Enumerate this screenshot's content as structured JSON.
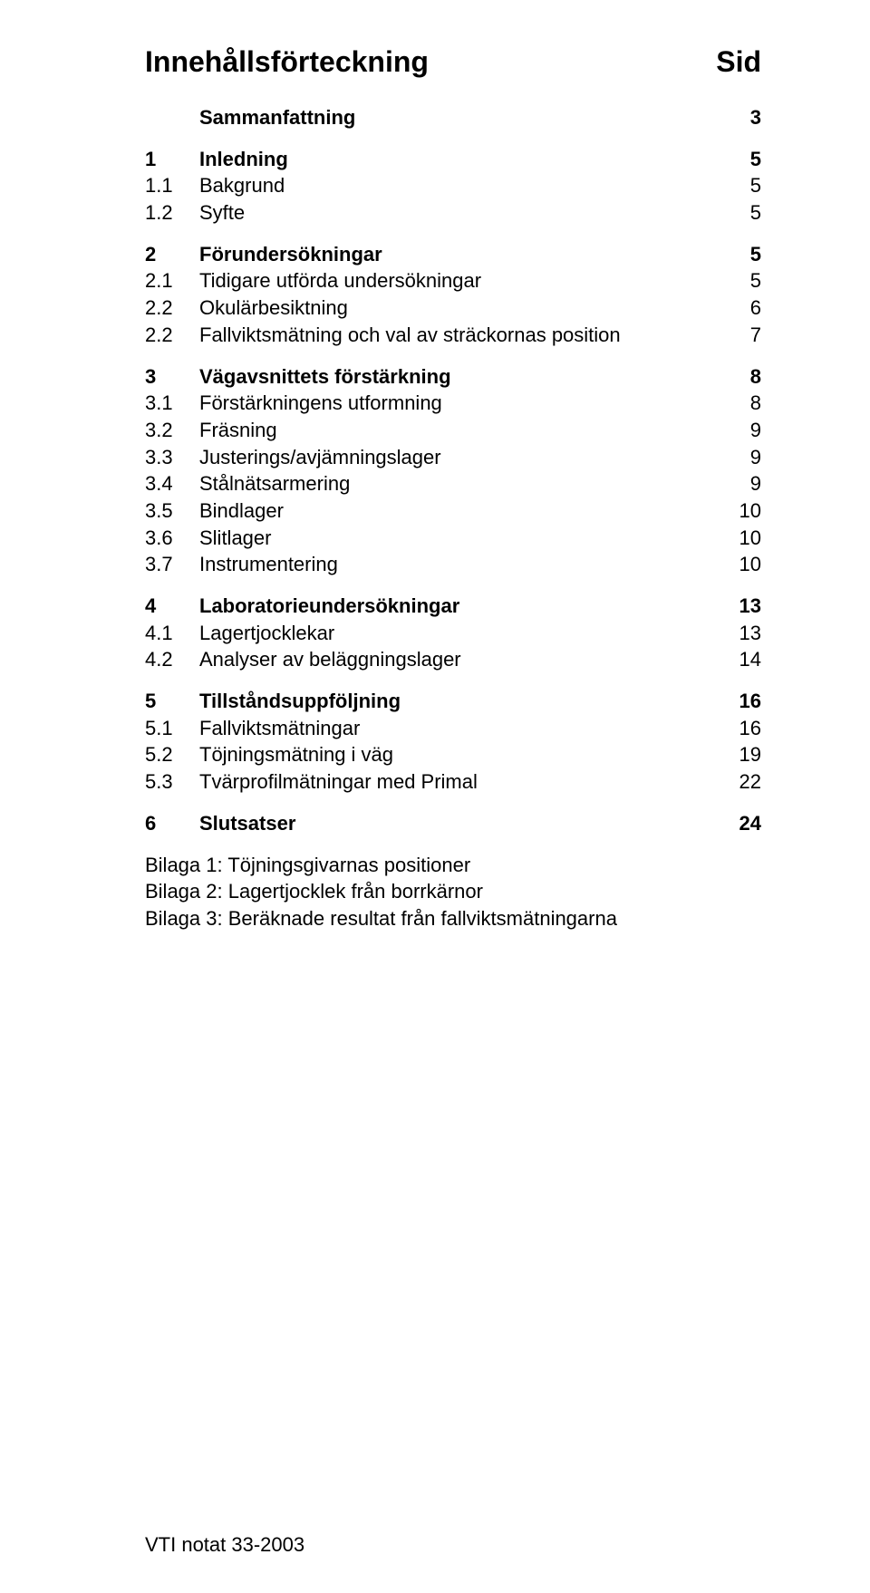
{
  "title": "Innehållsförteckning",
  "sid": "Sid",
  "entries": [
    {
      "num": "",
      "label": "Sammanfattning",
      "page": "3",
      "bold": true,
      "gapBefore": false
    },
    {
      "num": "1",
      "label": "Inledning",
      "page": "5",
      "bold": true,
      "gapBefore": true
    },
    {
      "num": "1.1",
      "label": "Bakgrund",
      "page": "5",
      "bold": false,
      "gapBefore": false
    },
    {
      "num": "1.2",
      "label": "Syfte",
      "page": "5",
      "bold": false,
      "gapBefore": false
    },
    {
      "num": "2",
      "label": "Förundersökningar",
      "page": "5",
      "bold": true,
      "gapBefore": true
    },
    {
      "num": "2.1",
      "label": "Tidigare utförda undersökningar",
      "page": "5",
      "bold": false,
      "gapBefore": false
    },
    {
      "num": "2.2",
      "label": "Okulärbesiktning",
      "page": "6",
      "bold": false,
      "gapBefore": false
    },
    {
      "num": "2.2",
      "label": "Fallviktsmätning och val av sträckornas position",
      "page": "7",
      "bold": false,
      "gapBefore": false
    },
    {
      "num": "3",
      "label": "Vägavsnittets förstärkning",
      "page": "8",
      "bold": true,
      "gapBefore": true
    },
    {
      "num": "3.1",
      "label": "Förstärkningens utformning",
      "page": "8",
      "bold": false,
      "gapBefore": false
    },
    {
      "num": "3.2",
      "label": "Fräsning",
      "page": "9",
      "bold": false,
      "gapBefore": false
    },
    {
      "num": "3.3",
      "label": "Justerings/avjämningslager",
      "page": "9",
      "bold": false,
      "gapBefore": false
    },
    {
      "num": "3.4",
      "label": "Stålnätsarmering",
      "page": "9",
      "bold": false,
      "gapBefore": false
    },
    {
      "num": "3.5",
      "label": "Bindlager",
      "page": "10",
      "bold": false,
      "gapBefore": false
    },
    {
      "num": "3.6",
      "label": "Slitlager",
      "page": "10",
      "bold": false,
      "gapBefore": false
    },
    {
      "num": "3.7",
      "label": "Instrumentering",
      "page": "10",
      "bold": false,
      "gapBefore": false
    },
    {
      "num": "4",
      "label": "Laboratorieundersökningar",
      "page": "13",
      "bold": true,
      "gapBefore": true
    },
    {
      "num": "4.1",
      "label": "Lagertjocklekar",
      "page": "13",
      "bold": false,
      "gapBefore": false
    },
    {
      "num": "4.2",
      "label": "Analyser av beläggningslager",
      "page": "14",
      "bold": false,
      "gapBefore": false
    },
    {
      "num": "5",
      "label": "Tillståndsuppföljning",
      "page": "16",
      "bold": true,
      "gapBefore": true
    },
    {
      "num": "5.1",
      "label": "Fallviktsmätningar",
      "page": "16",
      "bold": false,
      "gapBefore": false
    },
    {
      "num": "5.2",
      "label": "Töjningsmätning i väg",
      "page": "19",
      "bold": false,
      "gapBefore": false
    },
    {
      "num": "5.3",
      "label": "Tvärprofilmätningar med Primal",
      "page": "22",
      "bold": false,
      "gapBefore": false
    },
    {
      "num": "6",
      "label": "Slutsatser",
      "page": "24",
      "bold": true,
      "gapBefore": true
    }
  ],
  "appendices": [
    "Bilaga 1: Töjningsgivarnas positioner",
    "Bilaga 2: Lagertjocklek från borrkärnor",
    "Bilaga 3: Beräknade resultat från fallviktsmätningarna"
  ],
  "footer": "VTI notat 33-2003"
}
